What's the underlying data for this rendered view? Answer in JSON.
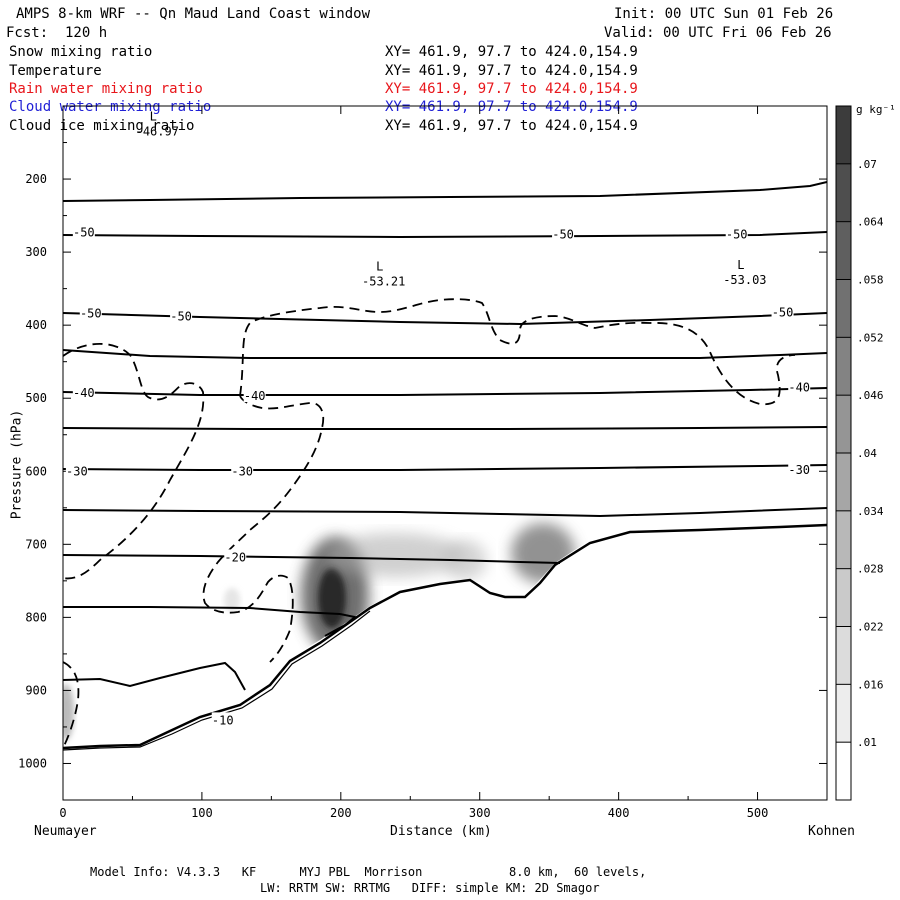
{
  "header": {
    "title": "AMPS 8-km WRF -- Qn Maud Land Coast window",
    "init": "Init: 00 UTC Sun 01 Feb 26",
    "forecast": "Fcst:  120 h",
    "valid": "Valid: 00 UTC Fri 06 Feb 26"
  },
  "fields": [
    {
      "name": "Snow mixing ratio",
      "xy": "XY= 461.9, 97.7 to 424.0,154.9",
      "color": "#000000"
    },
    {
      "name": "Temperature",
      "xy": "XY= 461.9, 97.7 to 424.0,154.9",
      "color": "#000000"
    },
    {
      "name": "Rain water mixing ratio",
      "xy": "XY= 461.9, 97.7 to 424.0,154.9",
      "color": "#e8161b"
    },
    {
      "name": "Cloud water mixing ratio",
      "xy": "XY= 461.9, 97.7 to 424.0,154.9",
      "color": "#1f1fd6"
    },
    {
      "name": "Cloud ice mixing ratio",
      "xy": "XY= 461.9, 97.7 to 424.0,154.9",
      "color": "#000000"
    }
  ],
  "footer": {
    "line1": "Model Info: V4.3.3   KF      MYJ PBL  Morrison            8.0 km,  60 levels,",
    "line2": "LW: RRTM SW: RRTMG   DIFF: simple KM: 2D Smagor"
  },
  "chart_data": {
    "type": "cross-section",
    "xlabel": "Distance (km)",
    "ylabel": "Pressure (hPa)",
    "xlim": [
      0,
      550
    ],
    "ylim": [
      1050,
      100
    ],
    "x_ticks": [
      0,
      100,
      200,
      300,
      400,
      500
    ],
    "y_ticks": [
      200,
      300,
      400,
      500,
      600,
      700,
      800,
      900,
      1000
    ],
    "left_endpoint": "Neumayer",
    "right_endpoint": "Kohnen",
    "colorbar": {
      "units": "g kg⁻¹",
      "levels": [
        0.01,
        0.016,
        0.022,
        0.028,
        0.034,
        0.04,
        0.046,
        0.052,
        0.058,
        0.064,
        0.07
      ],
      "labels": [
        ".01",
        ".016",
        ".022",
        ".028",
        ".034",
        ".04",
        ".046",
        ".052",
        ".058",
        ".064",
        ".07"
      ]
    },
    "lows": [
      {
        "label": "L",
        "value": "-46.97",
        "x": 65,
        "p": 120
      },
      {
        "label": "L",
        "value": "-53.21",
        "x": 228,
        "p": 325
      },
      {
        "label": "L",
        "value": "-53.03",
        "x": 488,
        "p": 323
      }
    ],
    "isotherm_labels": [
      {
        "text": "-50",
        "x": 15,
        "p": 273
      },
      {
        "text": "-50",
        "x": 360,
        "p": 276
      },
      {
        "text": "-50",
        "x": 485,
        "p": 276
      },
      {
        "text": "-50",
        "x": 20,
        "p": 384
      },
      {
        "text": "-50",
        "x": 85,
        "p": 388
      },
      {
        "text": "-50",
        "x": 518,
        "p": 383
      },
      {
        "text": "-40",
        "x": 15,
        "p": 493
      },
      {
        "text": "-40",
        "x": 138,
        "p": 497
      },
      {
        "text": "-40",
        "x": 530,
        "p": 485
      },
      {
        "text": "-30",
        "x": 10,
        "p": 600
      },
      {
        "text": "-30",
        "x": 129,
        "p": 600
      },
      {
        "text": "-30",
        "x": 530,
        "p": 598
      },
      {
        "text": "-20",
        "x": 124,
        "p": 718
      },
      {
        "text": "-10",
        "x": 115,
        "p": 941
      }
    ]
  }
}
